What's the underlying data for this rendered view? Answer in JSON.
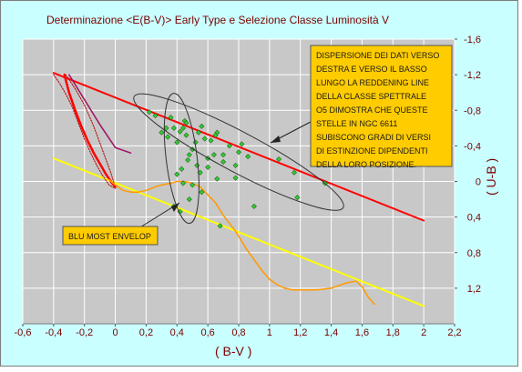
{
  "chart_data": {
    "type": "scatter",
    "title": "Determinazione <E(B-V)> Early Type e Selezione Classe Luminosità V",
    "xlabel": "( B-V )",
    "ylabel": "( U-B )",
    "xlim": [
      -0.6,
      2.2
    ],
    "ylim": [
      1.6,
      -1.6
    ],
    "x_ticks": [
      "-0,6",
      "-0,4",
      "-0,2",
      "0",
      "0,2",
      "0,4",
      "0,6",
      "0,8",
      "1",
      "1,2",
      "1,4",
      "1,6",
      "1,8",
      "2",
      "2,2"
    ],
    "x_tick_values": [
      -0.6,
      -0.4,
      -0.2,
      0,
      0.2,
      0.4,
      0.6,
      0.8,
      1.0,
      1.2,
      1.4,
      1.6,
      1.8,
      2.0,
      2.2
    ],
    "y_ticks": [
      "-1,6",
      "-1,2",
      "-0,8",
      "-0,4",
      "0",
      "0,4",
      "0,8",
      "1,2"
    ],
    "y_tick_values": [
      -1.6,
      -1.2,
      -0.8,
      -0.4,
      0,
      0.4,
      0.8,
      1.2
    ],
    "grid": true,
    "colors": {
      "plot_bg": "#c8c8c8",
      "frame_bg": "#c9ffff",
      "grid": "#ffffff",
      "axis_text": "#7a0000",
      "reddening_line": "#ff0000",
      "blue_envelope": "#ffff00",
      "v_sequence": "#ff9900",
      "points": "#33cc33",
      "dotted_branch": "#b00000",
      "short_line": "#a01060",
      "ellipse": "#333333",
      "annotation_bg": "#ffcc00"
    },
    "series": [
      {
        "type": "scatter",
        "x": [
          0.22,
          0.26,
          0.3,
          0.34,
          0.36,
          0.38,
          0.4,
          0.42,
          0.44,
          0.45,
          0.46,
          0.48,
          0.5,
          0.52,
          0.54,
          0.56,
          0.58,
          0.6,
          0.64,
          0.66,
          0.7,
          0.74,
          0.78,
          0.8,
          0.82,
          0.86,
          0.4,
          0.43,
          0.47,
          0.5,
          0.55,
          0.6,
          0.66,
          0.7,
          0.62,
          0.56,
          0.48,
          0.44,
          0.42,
          0.38,
          0.68,
          1.06,
          1.16,
          1.36,
          0.9,
          1.18,
          0.33,
          0.53,
          0.46,
          0.78,
          0.65
        ],
        "y": [
          -0.78,
          -0.74,
          -0.55,
          -0.5,
          -0.72,
          -0.6,
          -0.44,
          -0.56,
          -0.6,
          -0.68,
          -0.52,
          -0.3,
          -0.36,
          -0.44,
          -0.55,
          -0.62,
          -0.48,
          -0.26,
          -0.3,
          -0.55,
          -0.22,
          -0.4,
          -0.18,
          -0.33,
          -0.42,
          -0.28,
          -0.08,
          -0.14,
          -0.24,
          0.04,
          -0.1,
          -0.16,
          -0.03,
          -0.3,
          -0.46,
          0.12,
          0.2,
          0.02,
          0.34,
          0.28,
          0.5,
          -0.25,
          -0.1,
          0.02,
          0.28,
          0.18,
          -0.6,
          -0.18,
          -0.66,
          -0.04,
          -0.52
        ]
      },
      {
        "type": "line",
        "x": [
          -0.4,
          2.0
        ],
        "y": [
          -1.22,
          0.44
        ]
      },
      {
        "type": "line",
        "x": [
          -0.4,
          2.0
        ],
        "y": [
          -0.26,
          1.4
        ]
      },
      {
        "type": "line",
        "x": [
          -0.33,
          -0.3,
          -0.26,
          -0.22,
          -0.18,
          -0.14,
          -0.1,
          -0.06,
          -0.02,
          0.0
        ],
        "y": [
          -1.2,
          -1.0,
          -0.8,
          -0.62,
          -0.46,
          -0.32,
          -0.2,
          -0.08,
          0.02,
          0.06
        ]
      },
      {
        "type": "line",
        "x": [
          -0.4,
          -0.36,
          -0.32,
          -0.28,
          -0.24,
          -0.2,
          -0.16,
          -0.12,
          -0.08,
          -0.04,
          0.0
        ],
        "y": [
          -1.2,
          -1.1,
          -0.98,
          -0.84,
          -0.66,
          -0.48,
          -0.32,
          -0.18,
          -0.06,
          0.04,
          0.08
        ]
      },
      {
        "type": "line",
        "x": [
          -0.32,
          -0.26,
          -0.2,
          -0.14,
          -0.08,
          -0.03,
          0.0
        ],
        "y": [
          -1.2,
          -1.04,
          -0.86,
          -0.62,
          -0.34,
          -0.1,
          0.06
        ]
      },
      {
        "type": "line",
        "x": [
          -0.3,
          -0.2,
          -0.1,
          0.0,
          0.1
        ],
        "y": [
          -1.2,
          -0.92,
          -0.64,
          -0.38,
          -0.32
        ]
      },
      {
        "type": "line",
        "x": [
          -0.04,
          0.0,
          0.05,
          0.1,
          0.15,
          0.2,
          0.26,
          0.3,
          0.36,
          0.4,
          0.45,
          0.5,
          0.55,
          0.6,
          0.65,
          0.7,
          0.78,
          0.85,
          0.95,
          1.0,
          1.05,
          1.1,
          1.15,
          1.2,
          1.3,
          1.4,
          1.5,
          1.56,
          1.6,
          1.64,
          1.68
        ],
        "y": [
          -0.02,
          0.04,
          0.1,
          0.12,
          0.12,
          0.1,
          0.06,
          0.04,
          0.02,
          0.0,
          0.0,
          0.02,
          0.06,
          0.15,
          0.24,
          0.38,
          0.56,
          0.76,
          1.0,
          1.1,
          1.16,
          1.2,
          1.22,
          1.22,
          1.22,
          1.2,
          1.14,
          1.12,
          1.18,
          1.3,
          1.38
        ]
      }
    ],
    "annotations": [
      {
        "lines": [
          "DISPERSIONE DEI DATI VERSO",
          "DESTRA E VERSO IL BASSO",
          "LUNGO LA REDDENING LINE",
          "DELLA CLASSE SPETTRALE",
          "O5 DIMOSTRA CHE QUESTE",
          "STELLE IN NGC 6611",
          "SUBISCONO GRADI DI VERSI",
          "DI ESTINZIONE DIPENDENTI",
          "DELLA LORO POSIZIONE."
        ]
      },
      {
        "lines": [
          "BLU MOST ENVELOP"
        ]
      }
    ]
  }
}
